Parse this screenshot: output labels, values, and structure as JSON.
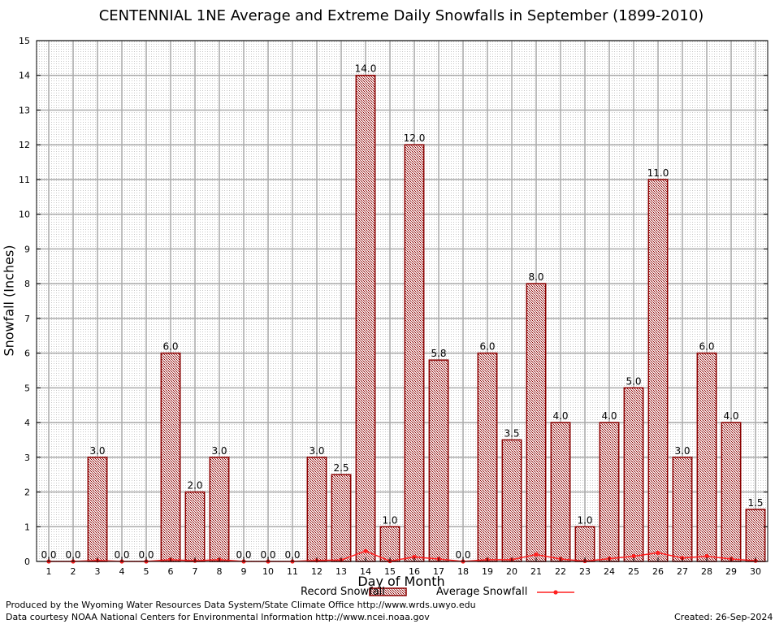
{
  "chart_data": {
    "type": "bar",
    "title": "CENTENNIAL 1NE Average and Extreme Daily Snowfalls in September (1899-2010)",
    "xlabel": "Day of Month",
    "ylabel": "Snowfall (Inches)",
    "ylim": [
      0,
      15
    ],
    "yticks": [
      "0",
      "1",
      "2",
      "3",
      "4",
      "5",
      "6",
      "7",
      "8",
      "9",
      "10",
      "11",
      "12",
      "13",
      "14",
      "15"
    ],
    "categories": [
      "1",
      "2",
      "3",
      "4",
      "5",
      "6",
      "7",
      "8",
      "9",
      "10",
      "11",
      "12",
      "13",
      "14",
      "15",
      "16",
      "17",
      "18",
      "19",
      "20",
      "21",
      "22",
      "23",
      "24",
      "25",
      "26",
      "27",
      "28",
      "29",
      "30"
    ],
    "series": [
      {
        "name": "Record Snowfall",
        "values": [
          0.0,
          0.0,
          3.0,
          0.0,
          0.0,
          6.0,
          2.0,
          3.0,
          0.0,
          0.0,
          0.0,
          3.0,
          2.5,
          14.0,
          1.0,
          12.0,
          5.8,
          0.0,
          6.0,
          3.5,
          8.0,
          4.0,
          1.0,
          4.0,
          5.0,
          11.0,
          3.0,
          6.0,
          4.0,
          1.5
        ],
        "labels": [
          "0.0",
          "0.0",
          "3.0",
          "0.0",
          "0.0",
          "6.0",
          "2.0",
          "3.0",
          "0.0",
          "0.0",
          "0.0",
          "3.0",
          "2.5",
          "14.0",
          "1.0",
          "12.0",
          "5.8",
          "0.0",
          "6.0",
          "3.5",
          "8.0",
          "4.0",
          "1.0",
          "4.0",
          "5.0",
          "11.0",
          "3.0",
          "6.0",
          "4.0",
          "1.5"
        ]
      },
      {
        "name": "Average Snowfall",
        "values": [
          0.0,
          0.0,
          0.03,
          0.0,
          0.0,
          0.05,
          0.02,
          0.05,
          0.0,
          0.0,
          0.0,
          0.03,
          0.04,
          0.3,
          0.01,
          0.13,
          0.07,
          0.0,
          0.05,
          0.05,
          0.2,
          0.07,
          0.01,
          0.08,
          0.15,
          0.25,
          0.1,
          0.15,
          0.07,
          0.02
        ]
      }
    ],
    "legend": {
      "placement": "bottom"
    },
    "colors": {
      "bar_fill": "#a97a7a",
      "bar_edge": "#8b0000",
      "line": "#ff2020",
      "grid": "#aaaaaa"
    }
  },
  "footer": {
    "produced_by": "Produced by the Wyoming Water Resources Data System/State Climate Office http://www.wrds.uwyo.edu",
    "data_courtesy": "Data courtesy NOAA National Centers for Environmental Information http://www.ncei.noaa.gov",
    "created": "Created:  26-Sep-2024"
  }
}
